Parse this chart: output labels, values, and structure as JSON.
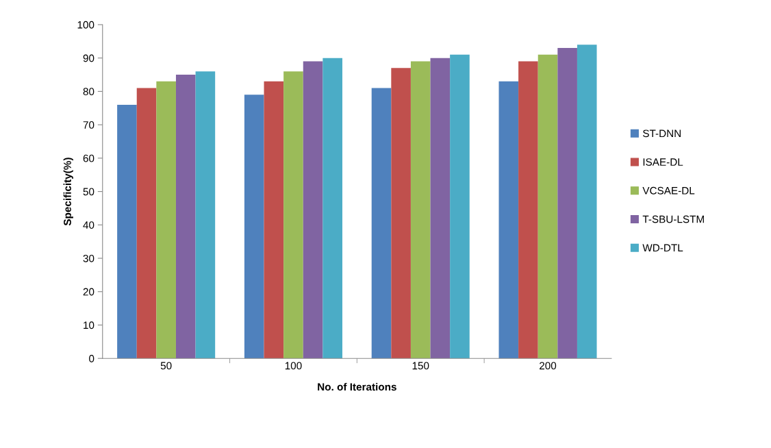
{
  "chart_data": {
    "type": "bar",
    "xlabel": "No. of Iterations",
    "ylabel": "Specificity(%)",
    "categories": [
      "50",
      "100",
      "150",
      "200"
    ],
    "series": [
      {
        "name": "ST-DNN",
        "color": "#4f81bd",
        "values": [
          76,
          79,
          81,
          83
        ]
      },
      {
        "name": "ISAE-DL",
        "color": "#c0504d",
        "values": [
          81,
          83,
          87,
          89
        ]
      },
      {
        "name": "VCSAE-DL",
        "color": "#9bbb59",
        "values": [
          83,
          86,
          89,
          91
        ]
      },
      {
        "name": "T-SBU-LSTM",
        "color": "#8064a2",
        "values": [
          85,
          89,
          90,
          93
        ]
      },
      {
        "name": "WD-DTL",
        "color": "#4bacc6",
        "values": [
          86,
          90,
          91,
          94
        ]
      }
    ],
    "ylim": [
      0,
      100
    ],
    "yticks": [
      0,
      10,
      20,
      30,
      40,
      50,
      60,
      70,
      80,
      90,
      100
    ],
    "grid": false,
    "legend": "right"
  }
}
